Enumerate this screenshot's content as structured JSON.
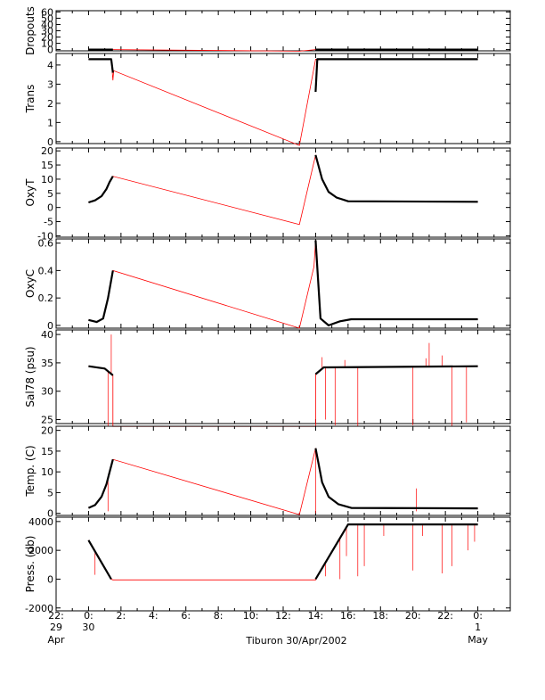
{
  "chart_data": {
    "type": "line",
    "x_axis": {
      "unit": "hours",
      "range": [
        -2,
        26
      ],
      "ticks": [
        {
          "value": -2,
          "line1": "22:",
          "line2": "29",
          "line3": "Apr"
        },
        {
          "value": 0,
          "line1": "0:",
          "line2": "30",
          "line3": ""
        },
        {
          "value": 2,
          "line1": "2:",
          "line2": "",
          "line3": ""
        },
        {
          "value": 4,
          "line1": "4:",
          "line2": "",
          "line3": ""
        },
        {
          "value": 6,
          "line1": "6:",
          "line2": "",
          "line3": ""
        },
        {
          "value": 8,
          "line1": "8:",
          "line2": "",
          "line3": ""
        },
        {
          "value": 10,
          "line1": "10:",
          "line2": "",
          "line3": ""
        },
        {
          "value": 12,
          "line1": "12:",
          "line2": "",
          "line3": ""
        },
        {
          "value": 14,
          "line1": "14:",
          "line2": "",
          "line3": ""
        },
        {
          "value": 16,
          "line1": "16:",
          "line2": "",
          "line3": ""
        },
        {
          "value": 18,
          "line1": "18:",
          "line2": "",
          "line3": ""
        },
        {
          "value": 20,
          "line1": "20:",
          "line2": "",
          "line3": ""
        },
        {
          "value": 22,
          "line1": "22:",
          "line2": "",
          "line3": ""
        },
        {
          "value": 24,
          "line1": "0:",
          "line2": "1",
          "line3": "May"
        }
      ],
      "xlabel": "Tiburon 30/Apr/2002"
    },
    "colors": {
      "raw": "#ff0000",
      "processed": "#000000"
    },
    "panels": [
      {
        "ylabel": "Dropouts",
        "ylim": [
          -2,
          62
        ],
        "yticks": [
          0,
          10,
          20,
          30,
          40,
          50,
          60
        ],
        "raw": [
          [
            0,
            0
          ],
          [
            1.5,
            0
          ],
          [
            13.0,
            -2.5
          ],
          [
            14.0,
            0
          ],
          [
            24,
            0
          ]
        ],
        "processed_segments": [
          [
            [
              0,
              0
            ],
            [
              1.5,
              0
            ]
          ],
          [
            [
              14.0,
              0
            ],
            [
              24,
              0
            ]
          ]
        ]
      },
      {
        "ylabel": "Trans",
        "ylim": [
          -0.1,
          4.6
        ],
        "yticks": [
          0,
          1,
          2,
          3,
          4
        ],
        "raw": [
          [
            0,
            4.3
          ],
          [
            1.4,
            4.3
          ],
          [
            1.5,
            3.2
          ],
          [
            1.55,
            3.7
          ],
          [
            13.0,
            -0.2
          ],
          [
            14.0,
            4.3
          ],
          [
            24,
            4.3
          ]
        ],
        "processed_segments": [
          [
            [
              0,
              4.3
            ],
            [
              1.4,
              4.3
            ],
            [
              1.5,
              3.6
            ]
          ],
          [
            [
              14.0,
              2.6
            ],
            [
              14.1,
              4.3
            ],
            [
              24,
              4.3
            ]
          ]
        ]
      },
      {
        "ylabel": "OxyT",
        "ylim": [
          -10.5,
          21
        ],
        "yticks": [
          -10,
          -5,
          0,
          5,
          10,
          15,
          20
        ],
        "raw": [
          [
            0,
            1.8
          ],
          [
            0.4,
            2.5
          ],
          [
            0.8,
            4.0
          ],
          [
            1.1,
            6.5
          ],
          [
            1.3,
            9.0
          ],
          [
            1.5,
            11.0
          ],
          [
            13.0,
            -6.0
          ],
          [
            14.0,
            18.5
          ],
          [
            14.4,
            10.0
          ],
          [
            14.8,
            5.5
          ],
          [
            15.3,
            3.5
          ],
          [
            16,
            2.2
          ],
          [
            24,
            2.0
          ]
        ],
        "processed_segments": [
          [
            [
              0,
              1.8
            ],
            [
              0.4,
              2.5
            ],
            [
              0.8,
              4.0
            ],
            [
              1.1,
              6.5
            ],
            [
              1.3,
              9.0
            ],
            [
              1.5,
              11.0
            ]
          ],
          [
            [
              14.0,
              18.5
            ],
            [
              14.4,
              10.0
            ],
            [
              14.8,
              5.5
            ],
            [
              15.3,
              3.5
            ],
            [
              16,
              2.2
            ],
            [
              24,
              2.0
            ]
          ]
        ]
      },
      {
        "ylabel": "OxyC",
        "ylim": [
          -0.02,
          0.63
        ],
        "yticks": [
          0.0,
          0.2,
          0.4,
          0.6
        ],
        "raw": [
          [
            0,
            0.04
          ],
          [
            0.5,
            0.025
          ],
          [
            0.9,
            0.05
          ],
          [
            1.2,
            0.2
          ],
          [
            1.5,
            0.4
          ],
          [
            13.0,
            -0.02
          ],
          [
            13.9,
            0.43
          ],
          [
            14.0,
            0.62
          ],
          [
            14.3,
            0.05
          ],
          [
            14.8,
            0.0
          ],
          [
            15.5,
            0.03
          ],
          [
            16.2,
            0.045
          ],
          [
            24,
            0.045
          ]
        ],
        "processed_segments": [
          [
            [
              0,
              0.04
            ],
            [
              0.5,
              0.025
            ],
            [
              0.9,
              0.05
            ],
            [
              1.2,
              0.2
            ],
            [
              1.5,
              0.4
            ]
          ],
          [
            [
              14.0,
              0.62
            ],
            [
              14.3,
              0.05
            ],
            [
              14.8,
              0.0
            ],
            [
              15.5,
              0.03
            ],
            [
              16.2,
              0.045
            ],
            [
              24,
              0.045
            ]
          ]
        ]
      },
      {
        "ylabel": "Sal78 (psu)",
        "ylim": [
          24.3,
          40.8
        ],
        "yticks": [
          25,
          30,
          35,
          40
        ],
        "raw": [
          [
            0,
            34.4
          ],
          [
            1.0,
            34.0
          ],
          [
            1.5,
            32.8
          ],
          [
            1.5,
            23.8
          ],
          [
            14.0,
            23.8
          ],
          [
            14.0,
            33.0
          ],
          [
            14.5,
            34.2
          ],
          [
            24,
            34.4
          ]
        ],
        "spikes": [
          [
            1.4,
            40.0
          ],
          [
            1.2,
            23.8
          ],
          [
            14.6,
            25.0
          ],
          [
            15.2,
            24.0
          ],
          [
            15.8,
            35.5
          ],
          [
            16.6,
            23.8
          ],
          [
            20.0,
            24.0
          ],
          [
            20.8,
            35.8
          ],
          [
            21.8,
            36.3
          ],
          [
            22.4,
            23.8
          ],
          [
            23.3,
            24.5
          ],
          [
            21.0,
            38.5
          ],
          [
            14.4,
            36.0
          ]
        ],
        "processed_segments": [
          [
            [
              0,
              34.4
            ],
            [
              1.0,
              34.0
            ],
            [
              1.5,
              32.8
            ]
          ],
          [
            [
              14.0,
              33.0
            ],
            [
              14.5,
              34.2
            ],
            [
              24,
              34.4
            ]
          ]
        ]
      },
      {
        "ylabel": "Temp. (C)",
        "ylim": [
          -0.5,
          21
        ],
        "yticks": [
          0,
          5,
          10,
          15,
          20
        ],
        "raw": [
          [
            0,
            1.3
          ],
          [
            0.4,
            2.0
          ],
          [
            0.8,
            4.0
          ],
          [
            1.1,
            7.0
          ],
          [
            1.3,
            10.0
          ],
          [
            1.5,
            13.0
          ],
          [
            13.0,
            -0.3
          ],
          [
            14.0,
            15.7
          ],
          [
            14.4,
            7.5
          ],
          [
            14.8,
            4.0
          ],
          [
            15.4,
            2.2
          ],
          [
            16.2,
            1.3
          ],
          [
            24,
            1.2
          ]
        ],
        "spikes": [
          [
            1.2,
            0.5
          ],
          [
            14.0,
            0.0
          ],
          [
            20.2,
            6.0
          ],
          [
            20.2,
            0.5
          ]
        ],
        "processed_segments": [
          [
            [
              0,
              1.3
            ],
            [
              0.4,
              2.0
            ],
            [
              0.8,
              4.0
            ],
            [
              1.1,
              7.0
            ],
            [
              1.3,
              10.0
            ],
            [
              1.5,
              13.0
            ]
          ],
          [
            [
              14.0,
              15.7
            ],
            [
              14.4,
              7.5
            ],
            [
              14.8,
              4.0
            ],
            [
              15.4,
              2.2
            ],
            [
              16.2,
              1.3
            ],
            [
              24,
              1.2
            ]
          ]
        ]
      },
      {
        "ylabel": "Press. (db)",
        "ylim": [
          -2200,
          4300
        ],
        "yticks": [
          -2000,
          0,
          2000,
          4000
        ],
        "raw": [
          [
            0,
            2700
          ],
          [
            1.4,
            0
          ],
          [
            1.5,
            -50
          ],
          [
            13.0,
            -50
          ],
          [
            14.0,
            -50
          ],
          [
            16.0,
            3800
          ],
          [
            24,
            3800
          ]
        ],
        "spikes": [
          [
            0.4,
            300
          ],
          [
            14.6,
            200
          ],
          [
            15.5,
            0
          ],
          [
            15.9,
            1600
          ],
          [
            16.6,
            200
          ],
          [
            17.0,
            900
          ],
          [
            18.2,
            3000
          ],
          [
            20.0,
            600
          ],
          [
            20.6,
            3000
          ],
          [
            21.8,
            400
          ],
          [
            22.4,
            900
          ],
          [
            23.4,
            2000
          ],
          [
            23.8,
            2600
          ]
        ],
        "processed_segments": [
          [
            [
              0,
              2700
            ],
            [
              1.4,
              0
            ]
          ],
          [
            [
              14.0,
              0
            ],
            [
              16.0,
              3800
            ],
            [
              24,
              3800
            ]
          ]
        ]
      }
    ]
  }
}
